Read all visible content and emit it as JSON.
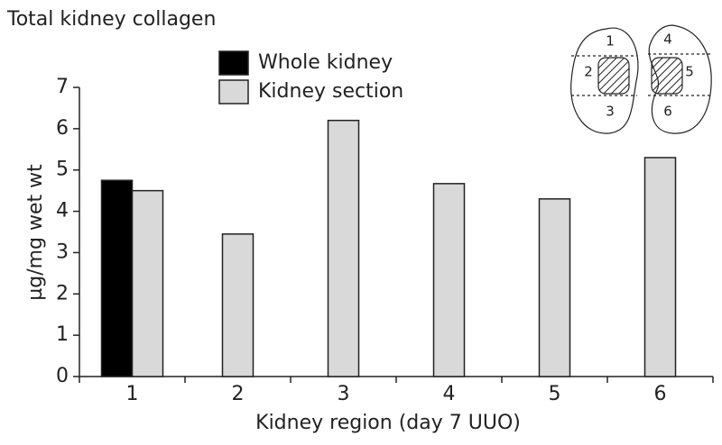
{
  "chart_data": {
    "type": "bar",
    "title": "Total kidney collagen",
    "x_label": "Kidney region (day 7 UUO)",
    "y_label": "µg/mg wet wt",
    "categories": [
      "1",
      "2",
      "3",
      "4",
      "5",
      "6"
    ],
    "series": [
      {
        "name": "Whole kidney",
        "color": "#000000",
        "values": [
          4.75,
          null,
          null,
          null,
          null,
          null
        ]
      },
      {
        "name": "Kidney section",
        "color": "#d9d9d9",
        "values": [
          4.5,
          3.45,
          6.2,
          4.67,
          4.3,
          5.3
        ]
      }
    ],
    "ylim": [
      0,
      7
    ],
    "yticks": [
      0,
      1,
      2,
      3,
      4,
      5,
      6,
      7
    ],
    "grid": false,
    "legend": "top",
    "annotations": [
      "1",
      "2",
      "3",
      "4",
      "5",
      "6"
    ]
  }
}
